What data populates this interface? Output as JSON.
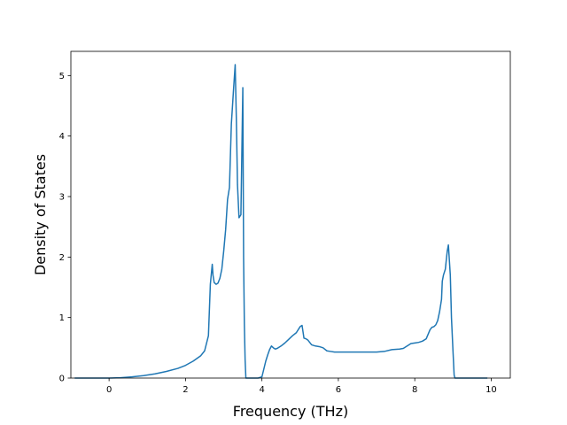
{
  "chart_data": {
    "type": "line",
    "title": "",
    "xlabel": "Frequency (THz)",
    "ylabel": "Density of States",
    "xlim": [
      -1.0,
      10.5
    ],
    "ylim": [
      0,
      5.4
    ],
    "xticks": [
      0,
      2,
      4,
      6,
      8,
      10
    ],
    "yticks": [
      0,
      1,
      2,
      3,
      4,
      5
    ],
    "tick_labels": {
      "x": [
        "0",
        "2",
        "4",
        "6",
        "8",
        "10"
      ],
      "y": [
        "0",
        "1",
        "2",
        "3",
        "4",
        "5"
      ]
    },
    "grid": false,
    "legend": "none",
    "colors": {
      "line": "#1f77b4",
      "axes": "#000000",
      "background": "#ffffff"
    },
    "series": [
      {
        "x": [
          -0.9,
          -0.5,
          0.0,
          0.3,
          0.6,
          0.9,
          1.2,
          1.5,
          1.8,
          2.0,
          2.2,
          2.4,
          2.5,
          2.6,
          2.65,
          2.7,
          2.72,
          2.75,
          2.8,
          2.85,
          2.9,
          2.95,
          3.0,
          3.05,
          3.1,
          3.15,
          3.2,
          3.25,
          3.3,
          3.33,
          3.36,
          3.4,
          3.45,
          3.5,
          3.52,
          3.54,
          3.56,
          3.58,
          3.6,
          3.62,
          3.65,
          3.7,
          3.8,
          3.9,
          4.0,
          4.05,
          4.1,
          4.15,
          4.2,
          4.25,
          4.3,
          4.35,
          4.4,
          4.5,
          4.6,
          4.7,
          4.8,
          4.9,
          5.0,
          5.05,
          5.1,
          5.15,
          5.2,
          5.3,
          5.4,
          5.5,
          5.6,
          5.7,
          5.8,
          5.9,
          6.0,
          6.5,
          7.0,
          7.2,
          7.4,
          7.6,
          7.7,
          7.8,
          7.9,
          8.0,
          8.1,
          8.2,
          8.3,
          8.4,
          8.45,
          8.5,
          8.55,
          8.6,
          8.65,
          8.7,
          8.72,
          8.75,
          8.8,
          8.85,
          8.88,
          8.9,
          8.93,
          8.96,
          9.0,
          9.03,
          9.05,
          9.1,
          9.5,
          9.9
        ],
        "values": [
          0.0,
          0.0,
          0.0,
          0.005,
          0.02,
          0.04,
          0.07,
          0.11,
          0.16,
          0.21,
          0.28,
          0.37,
          0.45,
          0.7,
          1.55,
          1.88,
          1.7,
          1.58,
          1.55,
          1.57,
          1.65,
          1.8,
          2.1,
          2.45,
          2.95,
          3.15,
          4.2,
          4.7,
          5.18,
          4.3,
          3.2,
          2.65,
          2.7,
          4.8,
          2.0,
          0.9,
          0.3,
          0.0,
          0.0,
          0.0,
          0.0,
          0.0,
          0.0,
          0.0,
          0.02,
          0.15,
          0.28,
          0.38,
          0.47,
          0.53,
          0.5,
          0.48,
          0.49,
          0.53,
          0.58,
          0.64,
          0.7,
          0.75,
          0.85,
          0.87,
          0.66,
          0.65,
          0.63,
          0.55,
          0.53,
          0.52,
          0.5,
          0.45,
          0.44,
          0.43,
          0.43,
          0.43,
          0.43,
          0.44,
          0.47,
          0.48,
          0.49,
          0.53,
          0.57,
          0.58,
          0.59,
          0.61,
          0.65,
          0.8,
          0.84,
          0.85,
          0.88,
          0.95,
          1.1,
          1.3,
          1.6,
          1.7,
          1.8,
          2.1,
          2.2,
          2.0,
          1.7,
          1.0,
          0.45,
          0.05,
          0.0,
          0.0,
          0.0,
          0.0
        ]
      }
    ]
  }
}
